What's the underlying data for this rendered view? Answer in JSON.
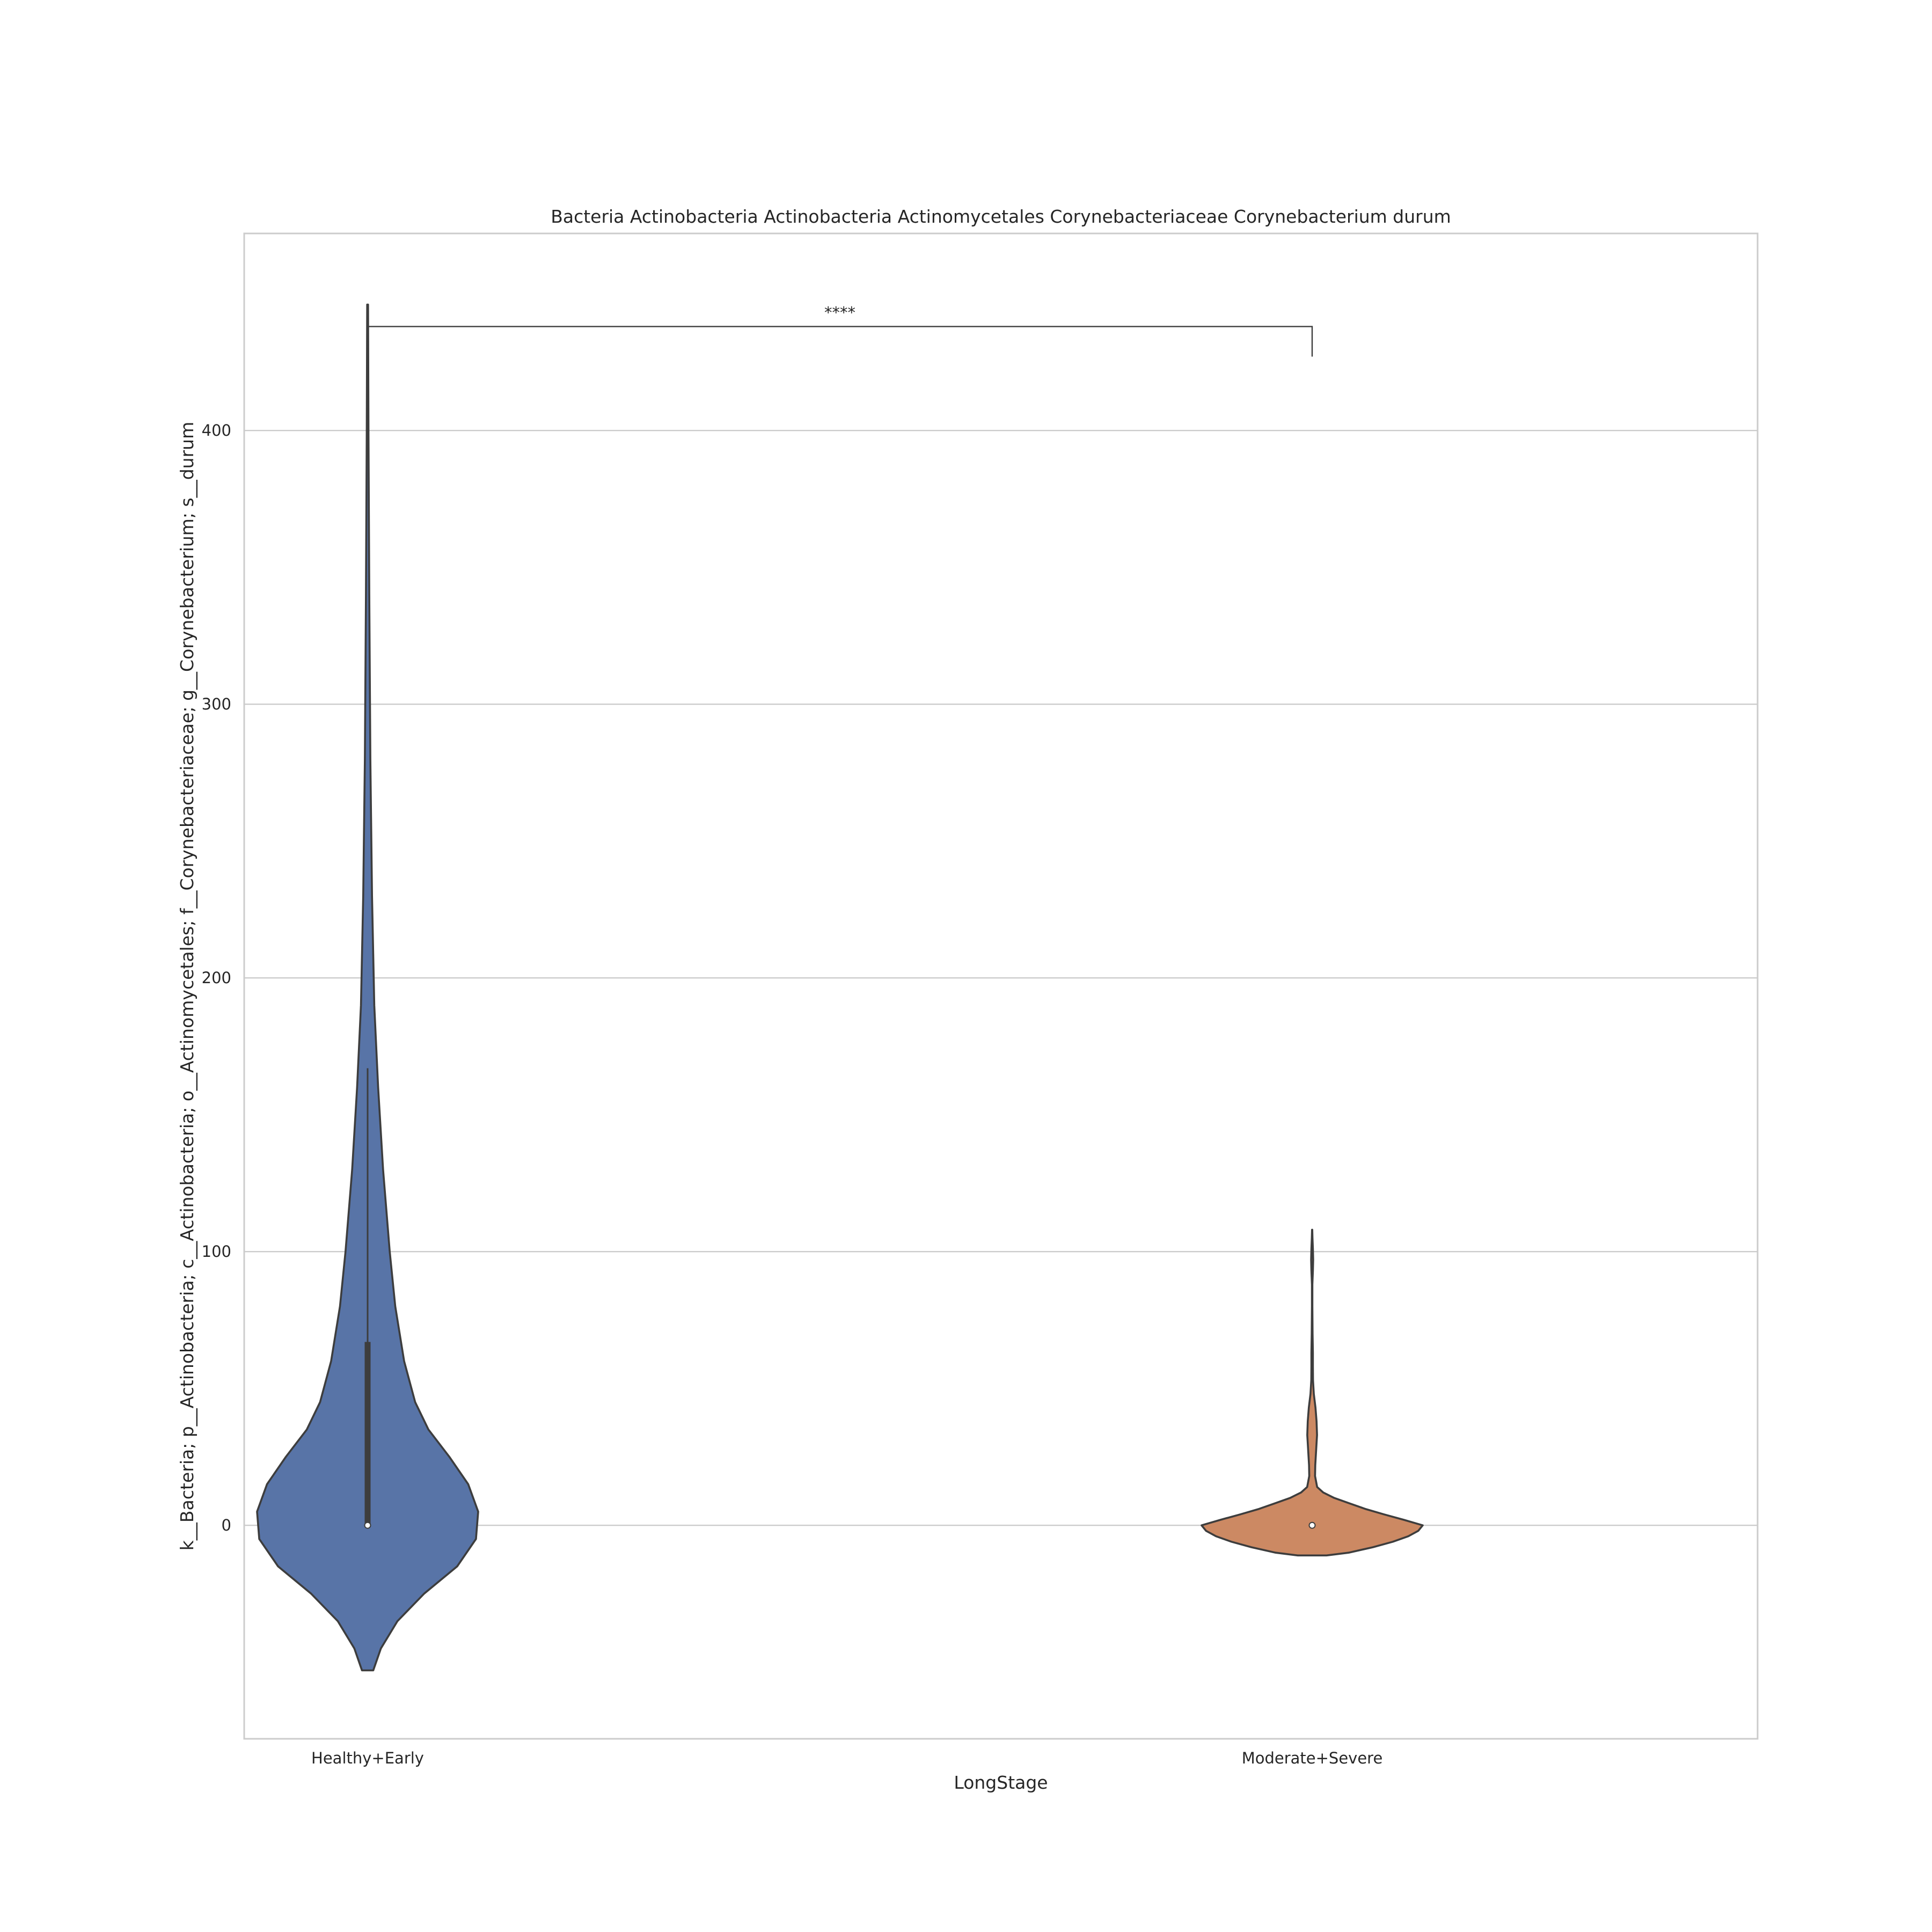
{
  "chart_data": {
    "type": "violin",
    "title": "Bacteria Actinobacteria Actinobacteria Actinomycetales Corynebacteriaceae Corynebacterium durum",
    "xlabel": "LongStage",
    "ylabel": "k__Bacteria; p__Actinobacteria; c__Actinobacteria; o__Actinomycetales; f__Corynebacteriaceae; g__Corynebacterium; s__durum",
    "ylim": [
      -78,
      472
    ],
    "yticks": [
      0,
      100,
      200,
      300,
      400
    ],
    "grid": "horizontal",
    "categories": [
      "Healthy+Early",
      "Moderate+Severe"
    ],
    "violins": [
      {
        "category": "Healthy+Early",
        "color": "#5874a7",
        "median": 0,
        "q1": 0,
        "q3": 67,
        "whisker_low": 0,
        "whisker_high": 167,
        "density_max": 446,
        "density_min": -53,
        "profile": [
          {
            "y": -53,
            "w": 0.051
          },
          {
            "y": -45,
            "w": 0.12
          },
          {
            "y": -35,
            "w": 0.27
          },
          {
            "y": -25,
            "w": 0.51
          },
          {
            "y": -15,
            "w": 0.81
          },
          {
            "y": -5,
            "w": 0.98
          },
          {
            "y": 5,
            "w": 1.0
          },
          {
            "y": 15,
            "w": 0.91
          },
          {
            "y": 25,
            "w": 0.74
          },
          {
            "y": 35,
            "w": 0.55
          },
          {
            "y": 45,
            "w": 0.43
          },
          {
            "y": 60,
            "w": 0.33
          },
          {
            "y": 80,
            "w": 0.25
          },
          {
            "y": 100,
            "w": 0.2
          },
          {
            "y": 130,
            "w": 0.14
          },
          {
            "y": 160,
            "w": 0.095
          },
          {
            "y": 190,
            "w": 0.06
          },
          {
            "y": 230,
            "w": 0.04
          },
          {
            "y": 280,
            "w": 0.025
          },
          {
            "y": 340,
            "w": 0.015
          },
          {
            "y": 400,
            "w": 0.008
          },
          {
            "y": 446,
            "w": 0.004
          }
        ]
      },
      {
        "category": "Moderate+Severe",
        "color": "#cc8963",
        "median": 0,
        "q1": 0,
        "q3": 0,
        "whisker_low": 0,
        "whisker_high": 0,
        "density_max": 108,
        "density_min": -11,
        "profile": [
          {
            "y": -11,
            "w": 0.13
          },
          {
            "y": -10,
            "w": 0.33
          },
          {
            "y": -8,
            "w": 0.55
          },
          {
            "y": -6,
            "w": 0.73
          },
          {
            "y": -4,
            "w": 0.87
          },
          {
            "y": -2,
            "w": 0.96
          },
          {
            "y": 0,
            "w": 1.0
          },
          {
            "y": 2,
            "w": 0.83
          },
          {
            "y": 4,
            "w": 0.65
          },
          {
            "y": 6,
            "w": 0.48
          },
          {
            "y": 8,
            "w": 0.34
          },
          {
            "y": 10,
            "w": 0.2
          },
          {
            "y": 12,
            "w": 0.1
          },
          {
            "y": 14,
            "w": 0.045
          },
          {
            "y": 18,
            "w": 0.026
          },
          {
            "y": 22,
            "w": 0.028
          },
          {
            "y": 28,
            "w": 0.037
          },
          {
            "y": 33,
            "w": 0.044
          },
          {
            "y": 38,
            "w": 0.04
          },
          {
            "y": 43,
            "w": 0.03
          },
          {
            "y": 48,
            "w": 0.015
          },
          {
            "y": 53,
            "w": 0.008
          },
          {
            "y": 58,
            "w": 0.007
          },
          {
            "y": 63,
            "w": 0.007
          },
          {
            "y": 70,
            "w": 0.004
          },
          {
            "y": 80,
            "w": 0.002
          },
          {
            "y": 88,
            "w": 0.002
          },
          {
            "y": 93,
            "w": 0.007
          },
          {
            "y": 97,
            "w": 0.009
          },
          {
            "y": 101,
            "w": 0.007
          },
          {
            "y": 105,
            "w": 0.003
          },
          {
            "y": 108,
            "w": 0.001
          }
        ]
      }
    ],
    "annotation": {
      "label": "****",
      "from": "Healthy+Early",
      "to": "Moderate+Severe",
      "y": 438,
      "tip_left": 438,
      "tip_right": 427
    },
    "colors": {
      "outline": "#3d3d3d",
      "grid": "#cccccc",
      "frame": "#cccccc",
      "text": "#262626"
    }
  }
}
